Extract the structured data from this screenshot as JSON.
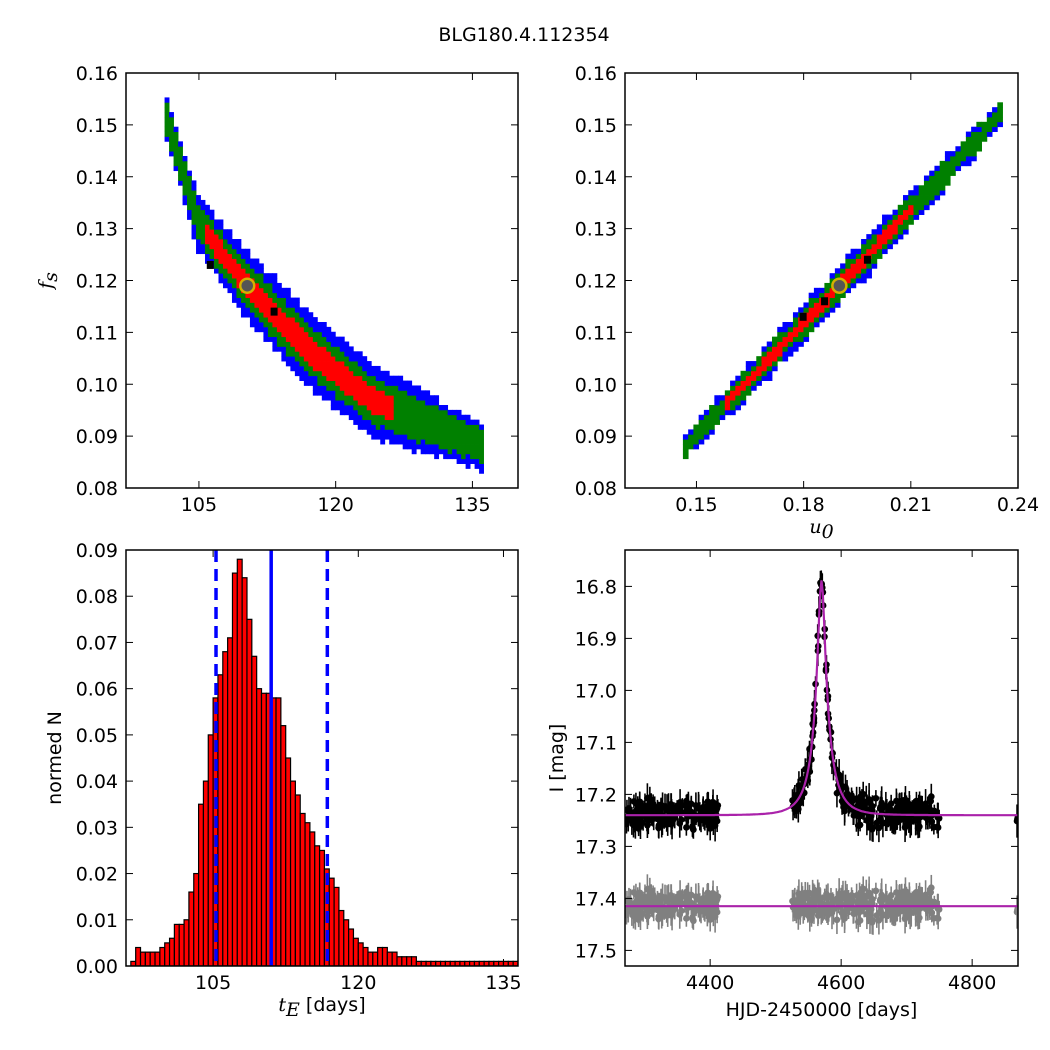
{
  "figure_title": "BLG180.4.112354",
  "colors": {
    "blue": "#0000ff",
    "green": "#008000",
    "red": "#ff0000",
    "black": "#000000",
    "gray": "#808080",
    "magenta": "#aa22aa",
    "gold": "#d4b000"
  },
  "chart_data": [
    {
      "type": "heatmap",
      "panel": "top-left",
      "xlabel": "",
      "ylabel": "f_s",
      "xlim": [
        97,
        140
      ],
      "ylim": [
        0.08,
        0.16
      ],
      "x_ticks": [
        "105",
        "120",
        "135"
      ],
      "y_ticks": [
        "0.08",
        "0.09",
        "0.10",
        "0.11",
        "0.12",
        "0.13",
        "0.14",
        "0.15",
        "0.16"
      ],
      "ridge": [
        [
          101.5,
          0.151
        ],
        [
          105,
          0.131
        ],
        [
          110.3,
          0.119
        ],
        [
          117.5,
          0.106
        ],
        [
          124,
          0.097
        ],
        [
          136,
          0.088
        ]
      ],
      "best_fit": [
        110.3,
        0.119
      ],
      "levels": [
        "blue",
        "green",
        "red",
        "black"
      ]
    },
    {
      "type": "heatmap",
      "panel": "top-right",
      "xlabel": "u_0",
      "ylabel": "",
      "xlim": [
        0.13,
        0.24
      ],
      "ylim": [
        0.08,
        0.16
      ],
      "x_ticks": [
        "0.15",
        "0.18",
        "0.21",
        "0.24"
      ],
      "y_ticks": [
        "0.08",
        "0.09",
        "0.10",
        "0.11",
        "0.12",
        "0.13",
        "0.14",
        "0.15",
        "0.16"
      ],
      "ridge": [
        [
          0.147,
          0.088
        ],
        [
          0.19,
          0.119
        ],
        [
          0.235,
          0.152
        ]
      ],
      "best_fit": [
        0.19,
        0.119
      ],
      "levels": [
        "blue",
        "green",
        "red",
        "black"
      ]
    },
    {
      "type": "bar",
      "panel": "bottom-left",
      "xlabel": "t_E [days]",
      "ylabel": "normed N",
      "xlim": [
        96,
        136.5
      ],
      "ylim": [
        0,
        0.09
      ],
      "x_ticks": [
        "105",
        "120",
        "135"
      ],
      "y_ticks": [
        "0.00",
        "0.01",
        "0.02",
        "0.03",
        "0.04",
        "0.05",
        "0.06",
        "0.07",
        "0.08",
        "0.09"
      ],
      "bin_start": 96.5,
      "bin_width": 0.5,
      "values": [
        0.001,
        0.004,
        0.003,
        0.003,
        0.003,
        0.003,
        0.004,
        0.005,
        0.006,
        0.009,
        0.009,
        0.01,
        0.016,
        0.02,
        0.035,
        0.04,
        0.05,
        0.058,
        0.063,
        0.068,
        0.071,
        0.085,
        0.088,
        0.084,
        0.075,
        0.067,
        0.06,
        0.059,
        0.059,
        0.058,
        0.058,
        0.052,
        0.045,
        0.04,
        0.037,
        0.033,
        0.031,
        0.029,
        0.026,
        0.025,
        0.021,
        0.019,
        0.017,
        0.012,
        0.01,
        0.008,
        0.006,
        0.005,
        0.004,
        0.003,
        0.003,
        0.004,
        0.004,
        0.003,
        0.003,
        0.002,
        0.002,
        0.002,
        0.002,
        0.001,
        0.001,
        0.001,
        0.001,
        0.001,
        0.001,
        0.001,
        0.001,
        0.001,
        0.001,
        0.001,
        0.001,
        0.001,
        0.001,
        0.001,
        0.001,
        0.001,
        0.001,
        0.001,
        0.001,
        0.001
      ],
      "median_line": 111,
      "interval_lines": [
        105.3,
        116.8
      ]
    },
    {
      "type": "scatter",
      "panel": "bottom-right",
      "xlabel": "HJD-2450000 [days]",
      "ylabel": "I [mag]",
      "xlim": [
        4270,
        4870
      ],
      "ylim": [
        17.53,
        16.73
      ],
      "x_ticks": [
        "4400",
        "4600",
        "4800"
      ],
      "y_ticks": [
        "16.8",
        "16.9",
        "17.0",
        "17.1",
        "17.2",
        "17.3",
        "17.4",
        "17.5"
      ],
      "model": {
        "t0": 4570,
        "tE": 111,
        "u0": 0.19,
        "fs": 0.119,
        "baseline": 17.24
      },
      "data_x_ranges": [
        [
          4272,
          4412
        ],
        [
          4525,
          4750
        ],
        [
          4867,
          4870
        ]
      ],
      "residual_offset": 17.415,
      "series": [
        {
          "name": "",
          "color": "black"
        },
        {
          "name": "",
          "color": "gray"
        }
      ]
    }
  ]
}
